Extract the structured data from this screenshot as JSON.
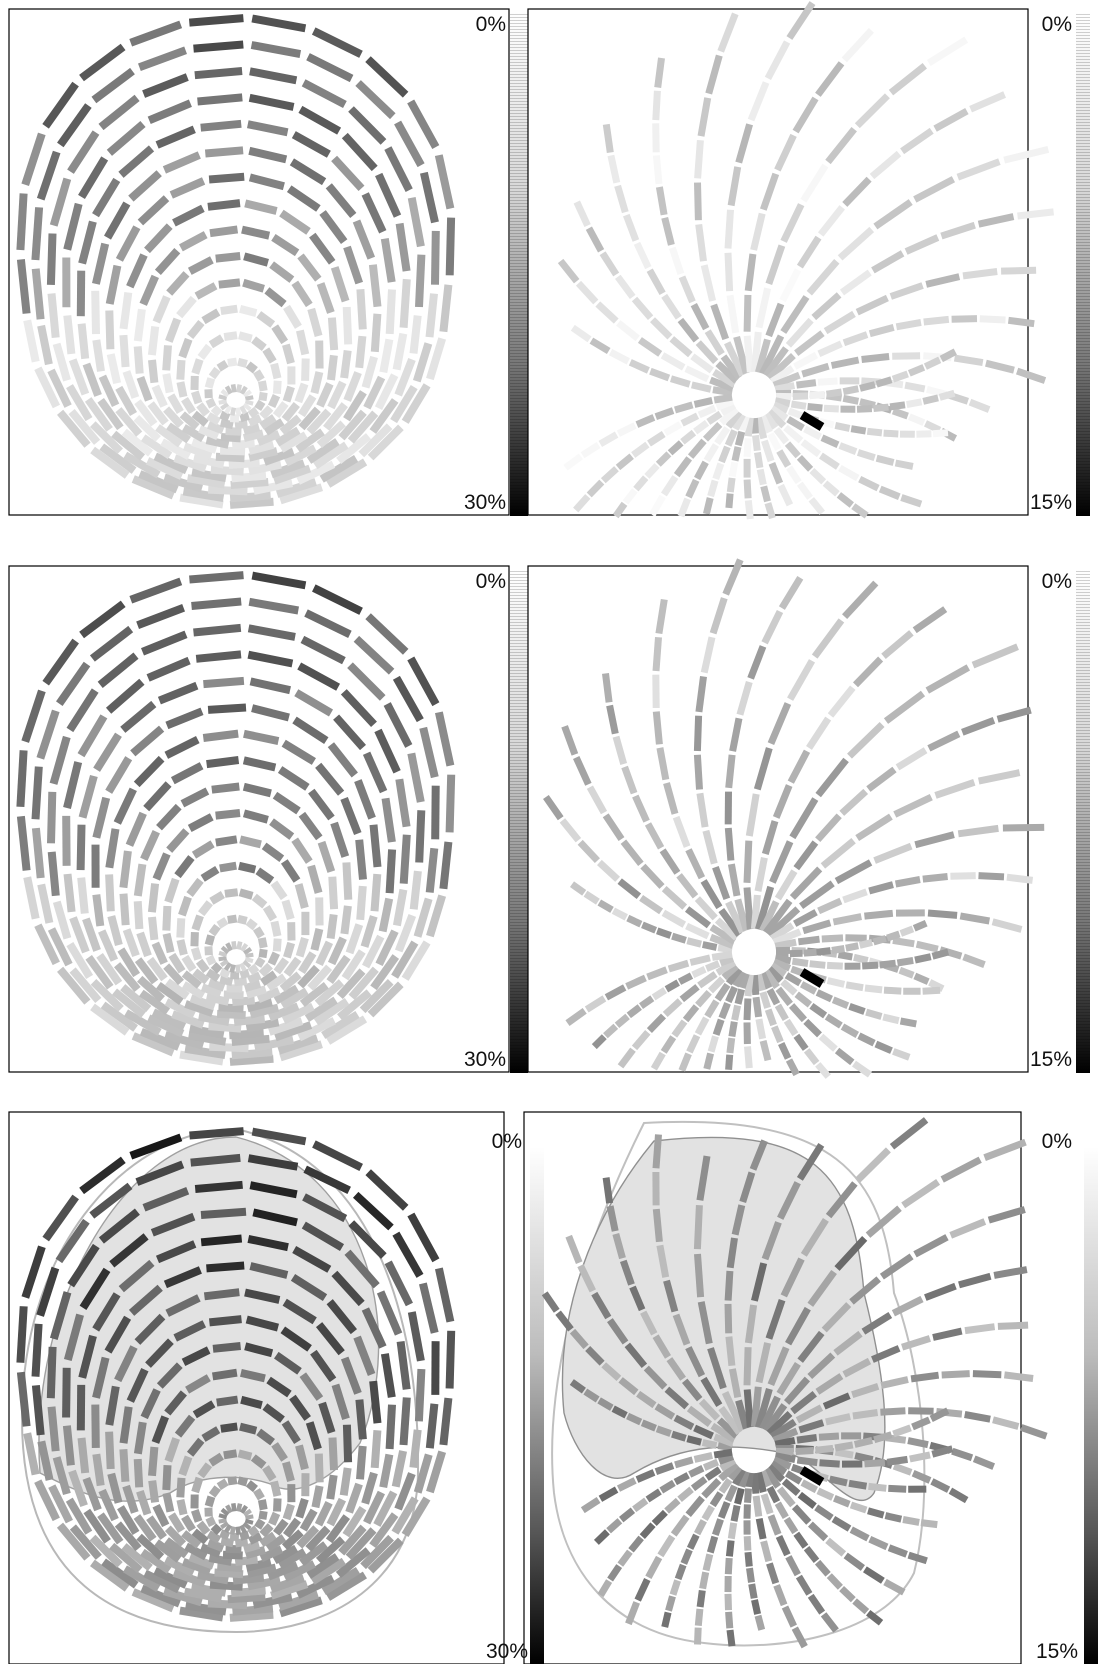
{
  "panels": [
    {
      "id": "p1",
      "type": "concentric",
      "top_label": "0%",
      "bottom_label": "30%",
      "shade": "light",
      "filled": false
    },
    {
      "id": "p2",
      "type": "radial",
      "top_label": "0%",
      "bottom_label": "15%",
      "shade": "light",
      "filled": false
    },
    {
      "id": "p3",
      "type": "concentric",
      "top_label": "0%",
      "bottom_label": "30%",
      "shade": "mid",
      "filled": false
    },
    {
      "id": "p4",
      "type": "radial",
      "top_label": "0%",
      "bottom_label": "15%",
      "shade": "mid",
      "filled": false
    },
    {
      "id": "p5",
      "type": "concentric",
      "top_label": "0%",
      "bottom_label": "30%",
      "shade": "dark",
      "filled": true
    },
    {
      "id": "p6",
      "type": "radial",
      "top_label": "0%",
      "bottom_label": "15%",
      "shade": "dark",
      "filled": true
    }
  ],
  "colors": {
    "frame": "#000000",
    "fill_region": "#e2e2e2",
    "fill_outline": "#b8b8b8"
  }
}
